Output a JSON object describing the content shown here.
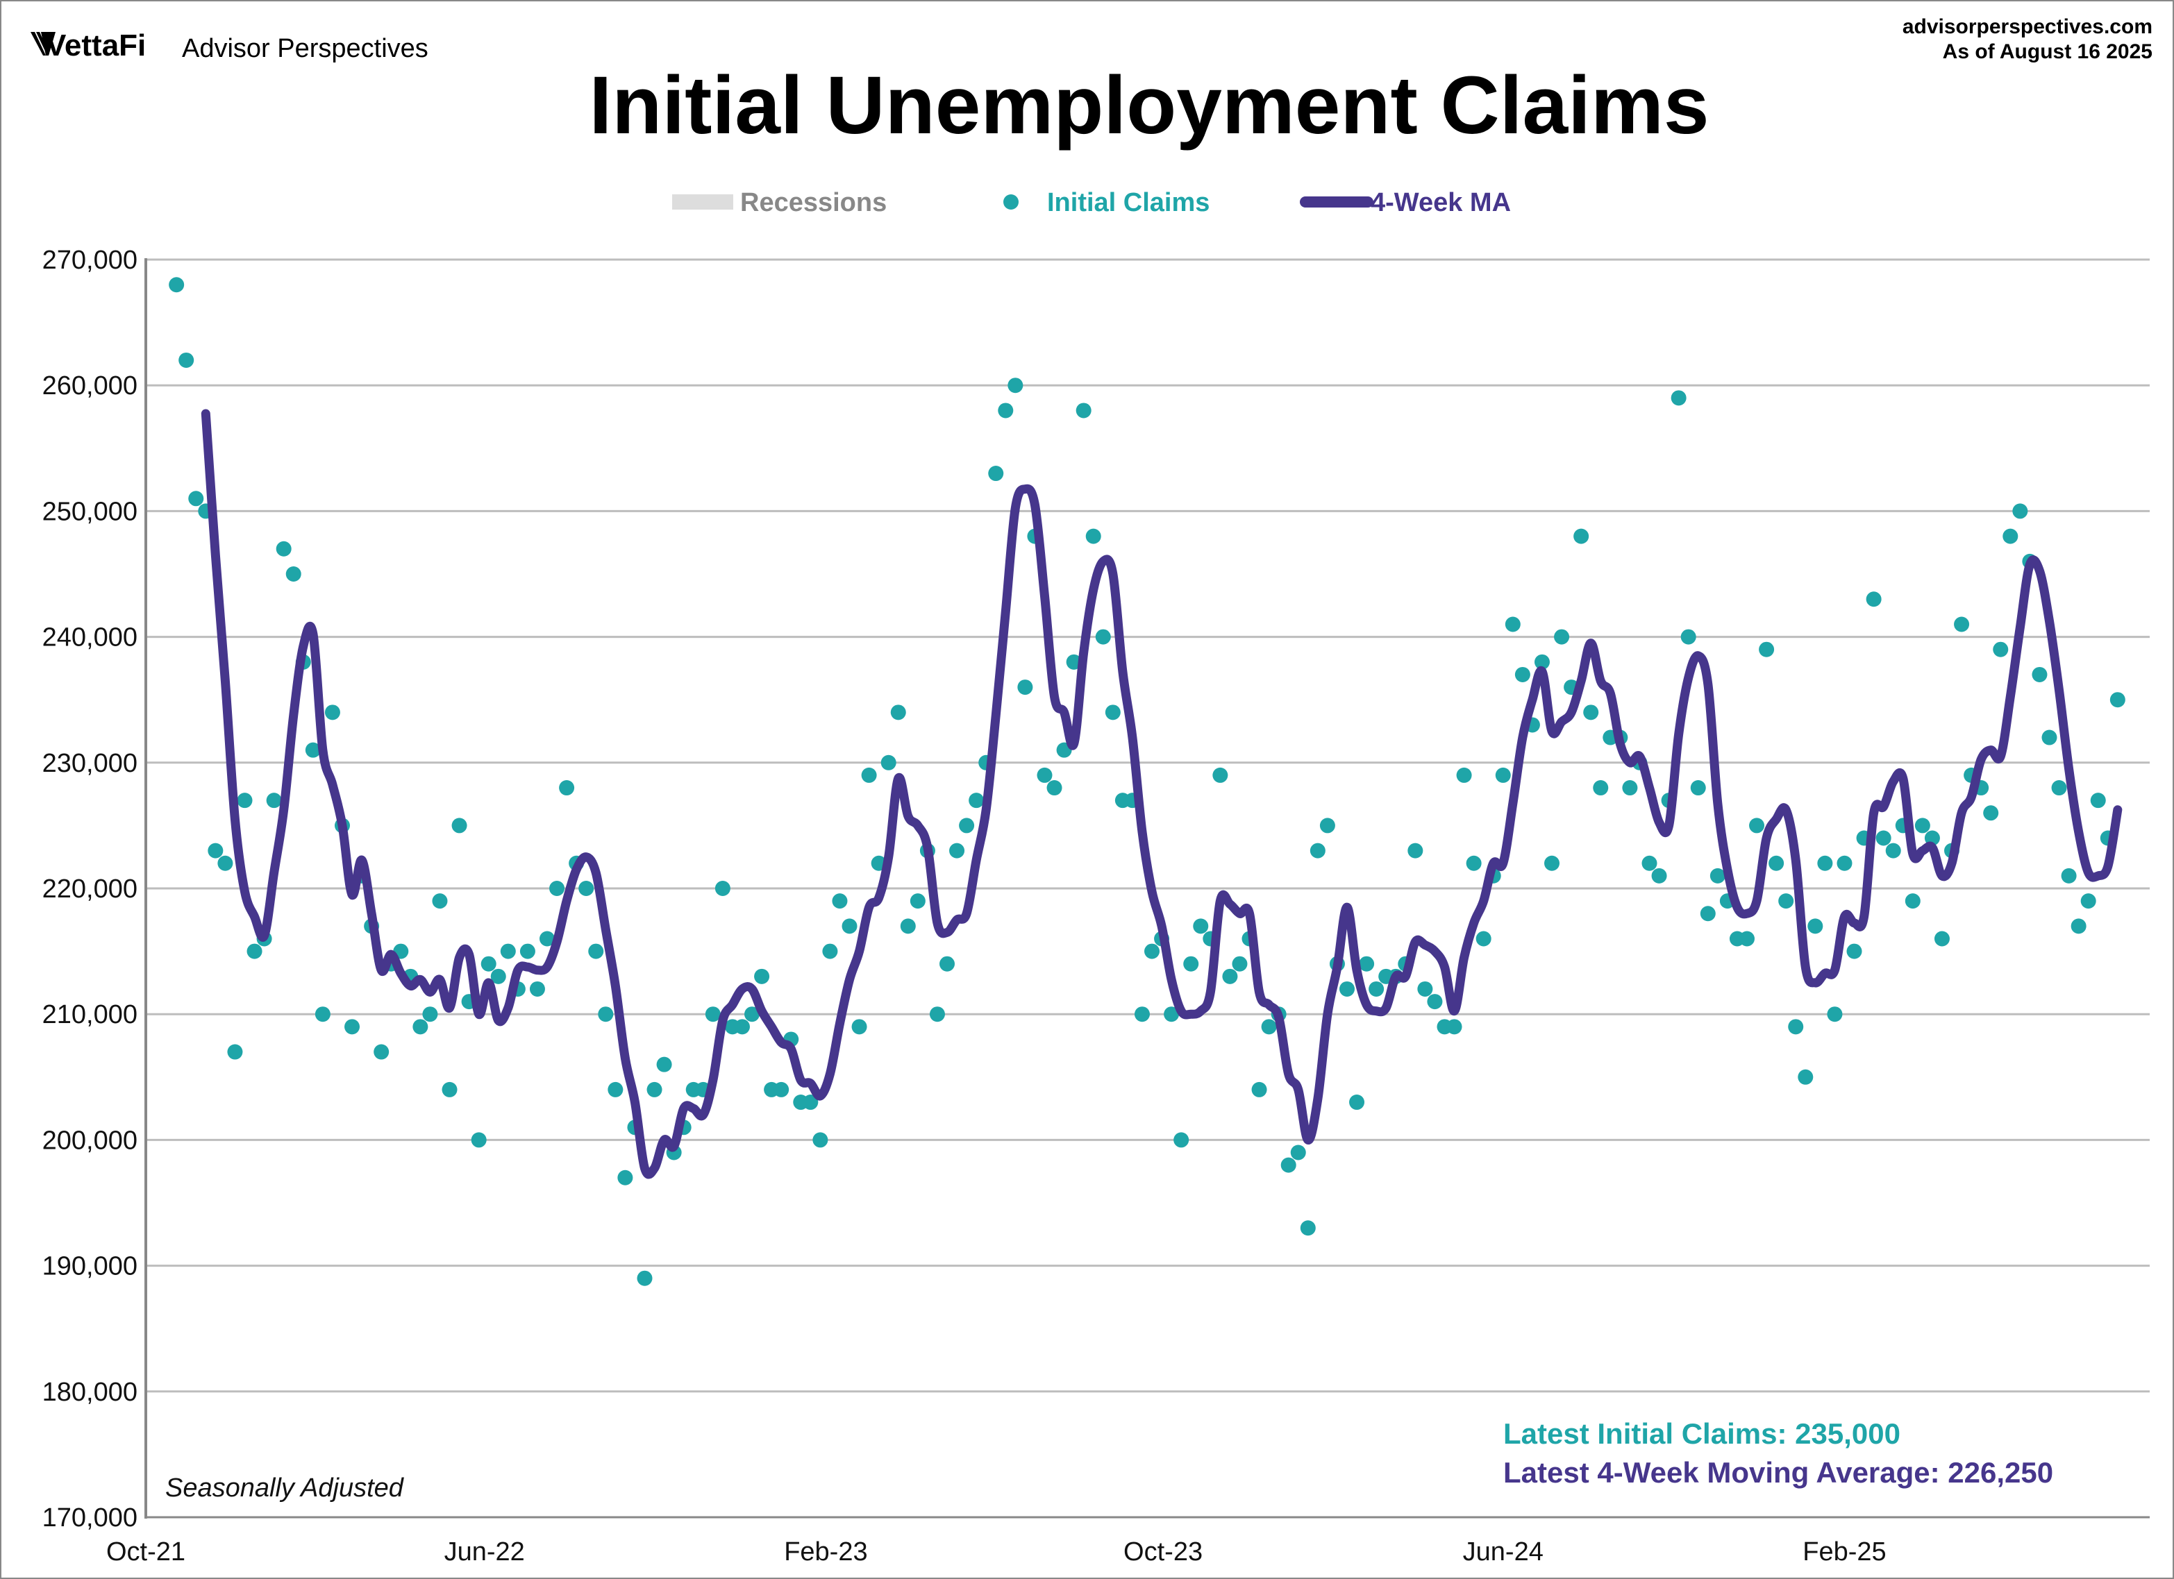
{
  "header": {
    "brand": "VettaFi",
    "brand_sub": "Advisor Perspectives",
    "source": "advisorperspectives.com",
    "as_of": "As of August 16 2025"
  },
  "colors": {
    "claims": "#1fa5a8",
    "ma": "#46368c",
    "recession": "#dddddd",
    "grid": "#bdbdbd"
  },
  "chart_data": {
    "type": "scatter",
    "title": "Initial Unemployment Claims",
    "legend": {
      "placement": "top-center",
      "entries": [
        "Recessions",
        "Initial Claims",
        "4-Week MA"
      ]
    },
    "note": "Seasonally Adjusted",
    "frequency": "weekly",
    "last_date": "2025-08-16",
    "xlim": [
      "2021-10-01",
      "2025-09-08"
    ],
    "x_ticks": [
      {
        "date": "2021-10-01",
        "label": "Oct-21"
      },
      {
        "date": "2022-06-01",
        "label": "Jun-22"
      },
      {
        "date": "2023-02-01",
        "label": "Feb-23"
      },
      {
        "date": "2023-10-01",
        "label": "Oct-23"
      },
      {
        "date": "2024-06-01",
        "label": "Jun-24"
      },
      {
        "date": "2025-02-01",
        "label": "Feb-25"
      }
    ],
    "ylim": [
      170000,
      270000
    ],
    "y_ticks": [
      "170,000",
      "180,000",
      "190,000",
      "200,000",
      "210,000",
      "220,000",
      "230,000",
      "240,000",
      "250,000",
      "260,000",
      "270,000"
    ],
    "grid": true,
    "series": [
      {
        "name": "Initial Claims",
        "style": "dots",
        "values": [
          268,
          262,
          251,
          250,
          223,
          222,
          207,
          227,
          215,
          216,
          227,
          247,
          245,
          238,
          231,
          210,
          234,
          225,
          209,
          221,
          217,
          207,
          214,
          215,
          213,
          209,
          210,
          219,
          204,
          225,
          211,
          200,
          214,
          213,
          215,
          212,
          215,
          212,
          216,
          220,
          228,
          222,
          220,
          215,
          210,
          204,
          197,
          201,
          189,
          204,
          206,
          199,
          201,
          204,
          204,
          210,
          220,
          209,
          209,
          210,
          213,
          204,
          204,
          208,
          203,
          203,
          200,
          215,
          219,
          217,
          209,
          229,
          222,
          230,
          234,
          217,
          219,
          223,
          210,
          214,
          223,
          225,
          227,
          230,
          253,
          258,
          260,
          236,
          248,
          229,
          228,
          231,
          238,
          258,
          248,
          240,
          234,
          227,
          227,
          210,
          215,
          216,
          210,
          200,
          214,
          217,
          216,
          229,
          213,
          214,
          216,
          204,
          209,
          210,
          198,
          199,
          193,
          223,
          225,
          214,
          212,
          203,
          214,
          212,
          213,
          213,
          214,
          223,
          212,
          211,
          209,
          209,
          229,
          222,
          216,
          221,
          229,
          241,
          237,
          233,
          238,
          222,
          240,
          236,
          248,
          234,
          228,
          232,
          232,
          228,
          230,
          222,
          221,
          227,
          259,
          240,
          228,
          218,
          221,
          219,
          216,
          216,
          225,
          239,
          222,
          219,
          209,
          205,
          217,
          222,
          210,
          222,
          215,
          224,
          243,
          224,
          223,
          225,
          219,
          225,
          224,
          216,
          223,
          241,
          229,
          228,
          226,
          239,
          248,
          250,
          246,
          237,
          232,
          228,
          221,
          217,
          219,
          227,
          224,
          235
        ],
        "unit": "thousands"
      },
      {
        "name": "4-Week MA",
        "style": "line",
        "method": "4-week moving average of Initial Claims"
      }
    ],
    "annotations": {
      "latest_claims": "Latest Initial Claims: 235,000",
      "latest_ma": "Latest 4-Week Moving Average: 226,250"
    }
  }
}
